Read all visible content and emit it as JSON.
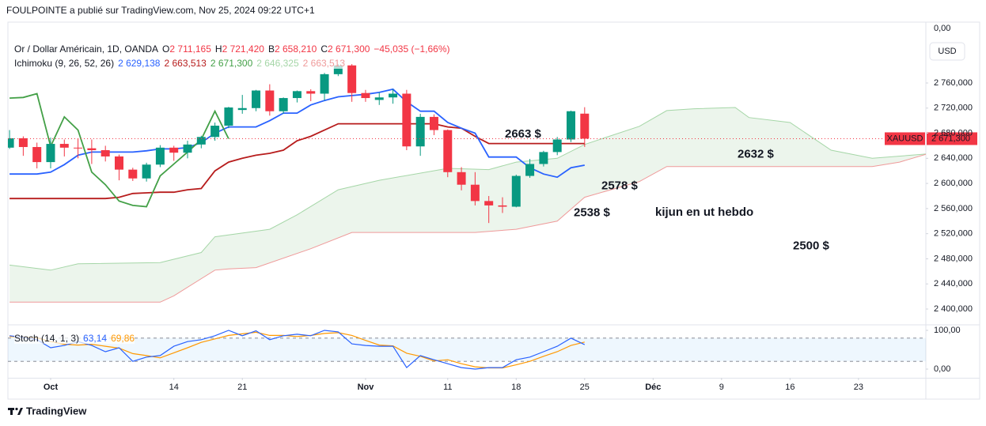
{
  "header": {
    "text": "FOULPOINTE a publié sur TradingView.com, Nov 25, 2024 09:22 UTC+1"
  },
  "footer": {
    "brand": "TradingView"
  },
  "chart_data": [
    {
      "type": "candlestick",
      "title": "Or / Dollar Américain, 1D, OANDA",
      "legend_items": [
        {
          "key": "O",
          "value": "2 711,165"
        },
        {
          "key": "H",
          "value": "2 721,420"
        },
        {
          "key": "B",
          "value": "2 658,210"
        },
        {
          "key": "C",
          "value": "2 671,300"
        }
      ],
      "legend_change": "−45,035 (−1,66%)",
      "legend_color": "#f23645",
      "indicator": "Ichimoku (9, 26, 52, 26)",
      "indicator_readouts": [
        "2 629,138",
        "2 663,513",
        "2 671,300",
        "2 646,325",
        "2 663,513"
      ],
      "up_color": "#089981",
      "down_color": "#f23645",
      "x": [
        -3,
        -2,
        -1,
        0,
        1,
        2,
        3,
        4,
        5,
        6,
        7,
        8,
        9,
        10,
        11,
        12,
        13,
        14,
        15,
        16,
        17,
        18,
        19,
        20,
        21,
        22,
        23,
        24,
        25,
        26,
        27,
        28,
        29,
        30,
        31,
        32,
        33,
        34,
        35,
        36,
        37,
        38,
        39
      ],
      "open": [
        2657,
        2672,
        2658,
        2634,
        2663,
        2657,
        2656,
        2653,
        2643,
        2622,
        2608,
        2630,
        2657,
        2649,
        2662,
        2674,
        2692,
        2717,
        2720,
        2748,
        2715,
        2736,
        2747,
        2743,
        2774,
        2788,
        2744,
        2733,
        2737,
        2743,
        2659,
        2706,
        2685,
        2618,
        2598,
        2572,
        2565,
        2563,
        2612,
        2631,
        2650,
        2670,
        2711.165
      ],
      "high": [
        2685,
        2675,
        2665,
        2673,
        2670,
        2672,
        2670,
        2660,
        2646,
        2625,
        2633,
        2661,
        2660,
        2668,
        2676,
        2697,
        2722,
        2741,
        2749,
        2758,
        2737,
        2748,
        2750,
        2776,
        2790,
        2790,
        2749,
        2745,
        2750,
        2749,
        2711,
        2710,
        2686,
        2626,
        2618,
        2580,
        2578,
        2614,
        2639,
        2652,
        2674,
        2716,
        2721.42
      ],
      "low": [
        2655,
        2644,
        2624,
        2624,
        2643,
        2640,
        2631,
        2635,
        2605,
        2604,
        2603,
        2626,
        2636,
        2640,
        2656,
        2668,
        2688,
        2711,
        2715,
        2708,
        2711,
        2729,
        2731,
        2732,
        2771,
        2730,
        2730,
        2725,
        2727,
        2653,
        2644,
        2677,
        2610,
        2589,
        2565,
        2537,
        2553,
        2562,
        2609,
        2627,
        2645,
        2666,
        2658.21
      ],
      "close": [
        2672,
        2658,
        2634,
        2663,
        2657,
        2656,
        2653,
        2643,
        2622,
        2608,
        2630,
        2657,
        2649,
        2662,
        2674,
        2692,
        2721,
        2720,
        2748,
        2715,
        2736,
        2747,
        2743,
        2774,
        2788,
        2744,
        2736,
        2737,
        2743,
        2659,
        2706,
        2685,
        2618,
        2598,
        2572,
        2565,
        2563,
        2612,
        2631,
        2650,
        2670,
        2715,
        2671.3
      ],
      "series": [
        {
          "color": "#2962ff",
          "values": [
            2615,
            2615,
            2615,
            2618,
            2630,
            2645,
            2650,
            2650,
            2650,
            2650,
            2652,
            2655,
            2655,
            2657,
            2665,
            2680,
            2690,
            2690,
            2690,
            2700,
            2712,
            2712,
            2725,
            2732,
            2738,
            2740,
            2742,
            2745,
            2750,
            2730,
            2715,
            2715,
            2697,
            2688,
            2680,
            2642,
            2642,
            2642,
            2625,
            2615,
            2610,
            2625,
            2629.138
          ]
        },
        {
          "color": "#b71c1c",
          "values": [
            2576,
            2576,
            2576,
            2576,
            2576,
            2576,
            2576,
            2576,
            2578,
            2584,
            2585,
            2586,
            2586,
            2590,
            2592,
            2620,
            2634,
            2640,
            2645,
            2648,
            2653,
            2668,
            2675,
            2685,
            2695,
            2695,
            2695,
            2695,
            2695,
            2695,
            2695,
            2695,
            2690,
            2688,
            2675,
            2663.513,
            2663.513,
            2663.513,
            2663.513,
            2663.513,
            2663.513,
            2663.513,
            2663.513
          ]
        },
        {
          "color": "#43a047",
          "x": [
            -3,
            -2,
            -1,
            0,
            1,
            2,
            3,
            4,
            5,
            6,
            7,
            8,
            9,
            10,
            11,
            12,
            13
          ],
          "values": [
            2736,
            2737,
            2743,
            2659,
            2706,
            2685,
            2618,
            2598,
            2572,
            2565,
            2563,
            2612,
            2631,
            2650,
            2670,
            2715,
            2671.3
          ]
        },
        {
          "color": "#a5d6a7",
          "x": [
            -3,
            0,
            2,
            8,
            11,
            12,
            16,
            18,
            21,
            24,
            29,
            32,
            34,
            37,
            39,
            43,
            45,
            47,
            50,
            51,
            54,
            57,
            60,
            64
          ],
          "values": [
            2470,
            2462,
            2472,
            2474,
            2490,
            2515,
            2527,
            2550,
            2590,
            2605,
            2624,
            2622,
            2634,
            2640,
            2662,
            2691,
            2716,
            2719,
            2721,
            2705,
            2697,
            2653,
            2640,
            2647
          ]
        },
        {
          "color": "#ef9a9a",
          "x": [
            -3,
            8,
            9,
            12,
            13,
            15,
            19,
            22,
            31,
            34,
            37,
            39,
            43,
            45,
            60,
            62,
            64
          ],
          "values": [
            2411,
            2411,
            2421,
            2462,
            2464,
            2466,
            2496,
            2522,
            2522,
            2527,
            2540,
            2578,
            2603,
            2627,
            2627,
            2634,
            2647
          ]
        }
      ],
      "cloud_color": "rgba(67,160,71,0.10)",
      "levels": [
        {
          "value": 2663,
          "label": "2663 $",
          "color": "#f23645"
        },
        {
          "value": 2632,
          "x": [
            38,
            60
          ],
          "label": "2632 $",
          "color": "#388e3c"
        },
        {
          "value": 2578,
          "x": [
            4,
            44
          ],
          "label": "2578 $",
          "color": "#388e3c"
        },
        {
          "value": 2538,
          "x": [
            18,
            51
          ],
          "label": "2538 $",
          "color": "#388e3c"
        },
        {
          "value": 2500,
          "x": [
            -3,
            53
          ],
          "label": "2500 $",
          "color": "#1f6e4f"
        }
      ],
      "note": {
        "text": "kijun en ut hebdo",
        "color": "#388e3c"
      },
      "last_price": {
        "value": 2671.3,
        "label": "2 671,300",
        "symbol": "XAUUSD",
        "color": "#f23645"
      },
      "top_label": "0,00",
      "currency": "USD",
      "grid": false,
      "xlim": [
        -3.12,
        63.92
      ],
      "xticks": [
        {
          "value": 0,
          "label": "Oct"
        },
        {
          "value": 9,
          "label": "14"
        },
        {
          "value": 14,
          "label": "21"
        },
        {
          "value": 23,
          "label": "Nov"
        },
        {
          "value": 29,
          "label": "11"
        },
        {
          "value": 34,
          "label": "18"
        },
        {
          "value": 39,
          "label": "25"
        },
        {
          "value": 44,
          "label": "Déc"
        },
        {
          "value": 49,
          "label": "9"
        },
        {
          "value": 54,
          "label": "16"
        },
        {
          "value": 59,
          "label": "23"
        }
      ],
      "ylim": [
        2376.1,
        2856.9
      ],
      "yticks": [
        {
          "value": 2400,
          "label": "2 400,000"
        },
        {
          "value": 2440,
          "label": "2 440,000"
        },
        {
          "value": 2480,
          "label": "2 480,000"
        },
        {
          "value": 2520,
          "label": "2 520,000"
        },
        {
          "value": 2560,
          "label": "2 560,000"
        },
        {
          "value": 2600,
          "label": "2 600,000"
        },
        {
          "value": 2640,
          "label": "2 640,000"
        },
        {
          "value": 2680,
          "label": "2 680,000"
        },
        {
          "value": 2720,
          "label": "2 720,000"
        },
        {
          "value": 2760,
          "label": "2 760,000"
        }
      ]
    },
    {
      "type": "line",
      "title": "Stoch (14, 1, 3)",
      "readouts": [
        "63,14",
        "69,86"
      ],
      "series": [
        {
          "color": "#2962ff",
          "values": [
            86,
            82,
            76,
            55,
            61,
            71,
            61,
            45,
            55,
            20,
            31,
            35,
            59,
            71,
            76,
            86,
            100,
            86,
            99,
            76,
            86,
            90,
            86,
            100,
            96,
            65,
            61,
            59,
            59,
            4,
            35,
            24,
            14,
            4,
            0,
            4,
            4,
            24,
            31,
            45,
            59,
            80,
            63.14
          ]
        },
        {
          "color": "#ff9800",
          "values": [
            84,
            83,
            81,
            71,
            64,
            62,
            64,
            59,
            54,
            40,
            35,
            29,
            42,
            55,
            69,
            78,
            87,
            91,
            95,
            87,
            87,
            84,
            87,
            92,
            94,
            87,
            74,
            62,
            60,
            41,
            33,
            21,
            24,
            14,
            6,
            3,
            3,
            11,
            20,
            33,
            45,
            61,
            69.86
          ]
        }
      ],
      "bands": [
        20,
        80
      ],
      "band_color": "rgba(33,150,243,0.08)",
      "ylim": [
        -22.4,
        112.2
      ],
      "yticks": [
        {
          "value": 100,
          "label": "100,00"
        },
        {
          "value": 0,
          "label": "0,00"
        }
      ]
    }
  ]
}
